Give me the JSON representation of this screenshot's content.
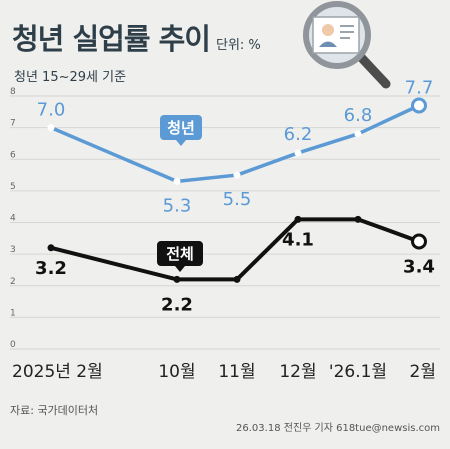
{
  "header": {
    "title": "청년 실업률 추이",
    "unit": "단위: %",
    "subtitle": "청년 15~29세 기준"
  },
  "footer": {
    "source": "자료: 국가데이터처",
    "credit": "26.03.18 전진우 기자 618tue@newsis.com"
  },
  "colors": {
    "youth": "#5b9ad5",
    "overall": "#111111",
    "background": "#efefed",
    "grid": "#d6d6d4"
  },
  "chart_data": {
    "type": "line",
    "title": "청년 실업률 추이",
    "subtitle": "청년 15~29세 기준",
    "ylabel": "단위: %",
    "ylim": [
      0,
      8
    ],
    "yticks": [
      0,
      1,
      2,
      3,
      4,
      5,
      6,
      7,
      8
    ],
    "grid": true,
    "categories": [
      "2025년 2월",
      "10월",
      "11월",
      "12월",
      "'26.1월",
      "2월"
    ],
    "series": [
      {
        "name": "청년",
        "values": [
          7.0,
          5.3,
          5.5,
          6.2,
          6.8,
          7.7
        ],
        "labels": [
          "7.0",
          "5.3",
          "5.5",
          "6.2",
          "6.8",
          "7.7"
        ]
      },
      {
        "name": "전체",
        "values": [
          3.2,
          2.2,
          2.2,
          4.1,
          4.1,
          3.4
        ],
        "labels": [
          "3.2",
          "2.2",
          "",
          "4.1",
          "",
          "3.4"
        ]
      }
    ]
  }
}
